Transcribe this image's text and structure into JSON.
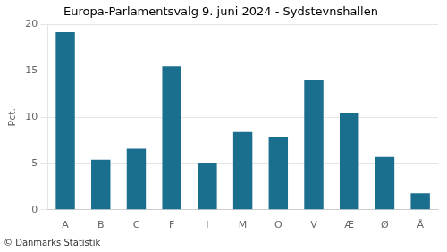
{
  "chart_data": {
    "type": "bar",
    "title": "Europa-Parlamentsvalg 9. juni 2024 - Sydstevnshallen",
    "categories": [
      "A",
      "B",
      "C",
      "F",
      "I",
      "M",
      "O",
      "V",
      "Æ",
      "Ø",
      "Å"
    ],
    "values": [
      19.2,
      5.4,
      6.6,
      15.5,
      5.1,
      8.4,
      7.9,
      14.0,
      10.5,
      5.7,
      1.8
    ],
    "color": "#1a6e8e",
    "ylabel": "Pct.",
    "footer": "© Danmarks Statistik",
    "ylim": [
      0,
      20
    ],
    "yticks": [
      0,
      5,
      10,
      15,
      20
    ],
    "grid": "y"
  }
}
